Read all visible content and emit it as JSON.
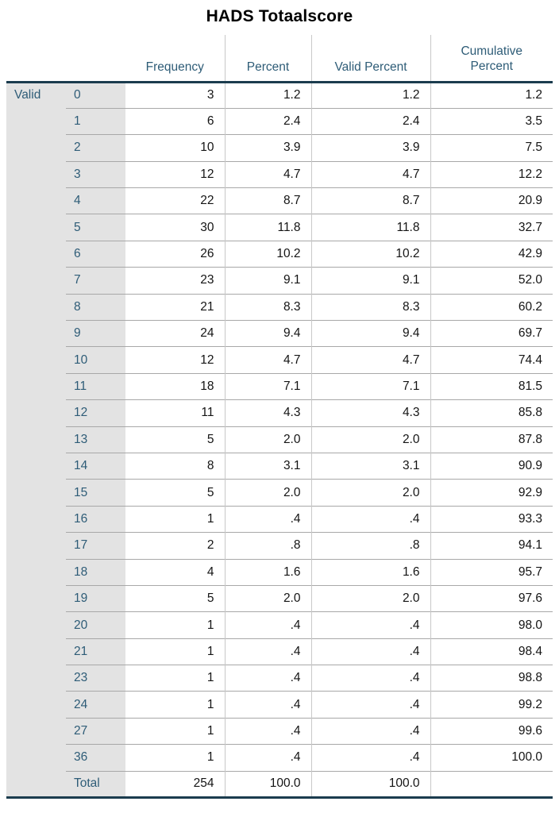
{
  "title": "HADS Totaalscore",
  "chart_data": {
    "type": "table",
    "title": "HADS Totaalscore",
    "row_group_label": "Valid",
    "columns": [
      "Frequency",
      "Percent",
      "Valid Percent",
      "Cumulative Percent"
    ],
    "rows": [
      {
        "label": "0",
        "frequency": "3",
        "percent": "1.2",
        "valid_percent": "1.2",
        "cumulative_percent": "1.2"
      },
      {
        "label": "1",
        "frequency": "6",
        "percent": "2.4",
        "valid_percent": "2.4",
        "cumulative_percent": "3.5"
      },
      {
        "label": "2",
        "frequency": "10",
        "percent": "3.9",
        "valid_percent": "3.9",
        "cumulative_percent": "7.5"
      },
      {
        "label": "3",
        "frequency": "12",
        "percent": "4.7",
        "valid_percent": "4.7",
        "cumulative_percent": "12.2"
      },
      {
        "label": "4",
        "frequency": "22",
        "percent": "8.7",
        "valid_percent": "8.7",
        "cumulative_percent": "20.9"
      },
      {
        "label": "5",
        "frequency": "30",
        "percent": "11.8",
        "valid_percent": "11.8",
        "cumulative_percent": "32.7"
      },
      {
        "label": "6",
        "frequency": "26",
        "percent": "10.2",
        "valid_percent": "10.2",
        "cumulative_percent": "42.9"
      },
      {
        "label": "7",
        "frequency": "23",
        "percent": "9.1",
        "valid_percent": "9.1",
        "cumulative_percent": "52.0"
      },
      {
        "label": "8",
        "frequency": "21",
        "percent": "8.3",
        "valid_percent": "8.3",
        "cumulative_percent": "60.2"
      },
      {
        "label": "9",
        "frequency": "24",
        "percent": "9.4",
        "valid_percent": "9.4",
        "cumulative_percent": "69.7"
      },
      {
        "label": "10",
        "frequency": "12",
        "percent": "4.7",
        "valid_percent": "4.7",
        "cumulative_percent": "74.4"
      },
      {
        "label": "11",
        "frequency": "18",
        "percent": "7.1",
        "valid_percent": "7.1",
        "cumulative_percent": "81.5"
      },
      {
        "label": "12",
        "frequency": "11",
        "percent": "4.3",
        "valid_percent": "4.3",
        "cumulative_percent": "85.8"
      },
      {
        "label": "13",
        "frequency": "5",
        "percent": "2.0",
        "valid_percent": "2.0",
        "cumulative_percent": "87.8"
      },
      {
        "label": "14",
        "frequency": "8",
        "percent": "3.1",
        "valid_percent": "3.1",
        "cumulative_percent": "90.9"
      },
      {
        "label": "15",
        "frequency": "5",
        "percent": "2.0",
        "valid_percent": "2.0",
        "cumulative_percent": "92.9"
      },
      {
        "label": "16",
        "frequency": "1",
        "percent": ".4",
        "valid_percent": ".4",
        "cumulative_percent": "93.3"
      },
      {
        "label": "17",
        "frequency": "2",
        "percent": ".8",
        "valid_percent": ".8",
        "cumulative_percent": "94.1"
      },
      {
        "label": "18",
        "frequency": "4",
        "percent": "1.6",
        "valid_percent": "1.6",
        "cumulative_percent": "95.7"
      },
      {
        "label": "19",
        "frequency": "5",
        "percent": "2.0",
        "valid_percent": "2.0",
        "cumulative_percent": "97.6"
      },
      {
        "label": "20",
        "frequency": "1",
        "percent": ".4",
        "valid_percent": ".4",
        "cumulative_percent": "98.0"
      },
      {
        "label": "21",
        "frequency": "1",
        "percent": ".4",
        "valid_percent": ".4",
        "cumulative_percent": "98.4"
      },
      {
        "label": "23",
        "frequency": "1",
        "percent": ".4",
        "valid_percent": ".4",
        "cumulative_percent": "98.8"
      },
      {
        "label": "24",
        "frequency": "1",
        "percent": ".4",
        "valid_percent": ".4",
        "cumulative_percent": "99.2"
      },
      {
        "label": "27",
        "frequency": "1",
        "percent": ".4",
        "valid_percent": ".4",
        "cumulative_percent": "99.6"
      },
      {
        "label": "36",
        "frequency": "1",
        "percent": ".4",
        "valid_percent": ".4",
        "cumulative_percent": "100.0"
      },
      {
        "label": "Total",
        "frequency": "254",
        "percent": "100.0",
        "valid_percent": "100.0",
        "cumulative_percent": ""
      }
    ]
  },
  "colors": {
    "header_text": "#2e5c77",
    "row_label_text": "#2e5c77",
    "data_text": "#141414",
    "stub_background": "#e3e3e3",
    "thick_rule": "#1b3c4e",
    "thin_rule_horizontal": "#a8a8a8",
    "thin_rule_vertical": "#c8c8c8"
  }
}
